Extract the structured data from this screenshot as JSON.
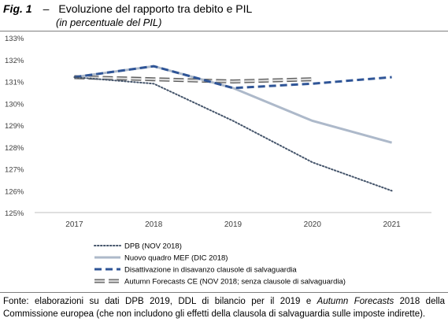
{
  "figure": {
    "label": "Fig. 1",
    "dash": "–",
    "title": "Evoluzione del rapporto tra debito e PIL",
    "subtitle": "(in percentuale del PIL)"
  },
  "source": {
    "part1": "Fonte: elaborazioni su dati DPB 2019, DDL di bilancio per il 2019 e ",
    "italic": "Autumn Forecasts",
    "part2": " 2018 della Commissione europea (che non includono gli effetti della clausola di salvaguardia sulle imposte indirette)."
  },
  "colors": {
    "dpb": "#44546a",
    "nuovo": "#adb9ca",
    "disattivazione": "#2f5597",
    "autumn_outline": "#595959",
    "autumn_fill": "#d9d9d9",
    "axis": "#bfbfbf"
  },
  "chart_data": {
    "type": "line",
    "title": "Evoluzione del rapporto tra debito e PIL",
    "subtitle": "(in percentuale del PIL)",
    "xlabel": "",
    "ylabel": "",
    "x": [
      "2017",
      "2018",
      "2019",
      "2020",
      "2021"
    ],
    "ylim": [
      125,
      133
    ],
    "yticks": [
      "125%",
      "126%",
      "127%",
      "128%",
      "129%",
      "130%",
      "131%",
      "132%",
      "133%"
    ],
    "grid": false,
    "legend_position": "bottom-left",
    "series": [
      {
        "name": "DPB (NOV 2018)",
        "style": "dotted",
        "color": "#44546a",
        "values": [
          131.2,
          130.9,
          129.2,
          127.3,
          126.0
        ]
      },
      {
        "name": "Nuovo quadro MEF (DIC 2018)",
        "style": "solid",
        "color": "#adb9ca",
        "values": [
          131.2,
          131.7,
          130.7,
          129.2,
          128.2
        ]
      },
      {
        "name": "Disattivazione in disavanzo clausole di salvaguardia",
        "style": "dashed",
        "color": "#2f5597",
        "values": [
          131.2,
          131.7,
          130.7,
          130.9,
          131.2
        ]
      },
      {
        "name": "Autumn Forecasts CE (NOV 2018; senza clausole di salvaguardia)",
        "style": "double-dashed",
        "color": "#595959",
        "values": [
          131.2,
          131.1,
          131.0,
          131.1,
          null
        ]
      }
    ]
  }
}
